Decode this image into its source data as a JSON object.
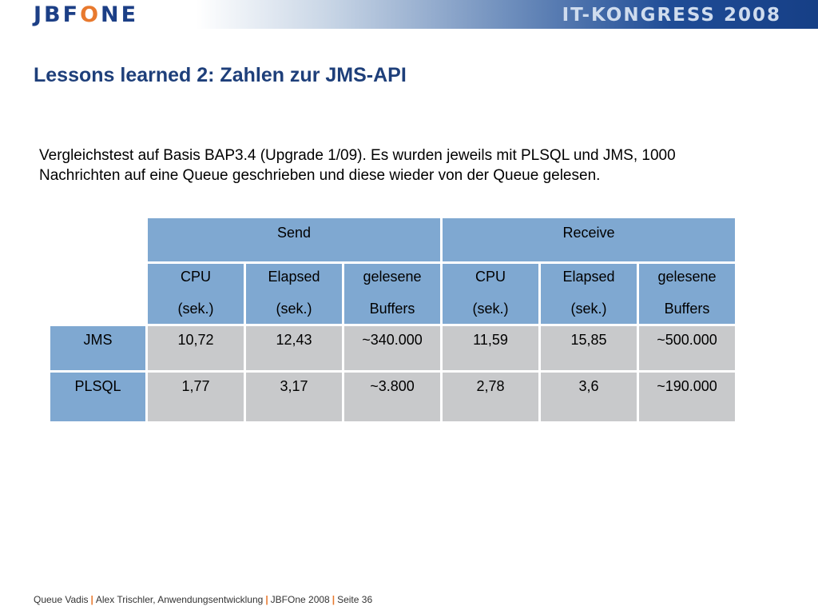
{
  "header": {
    "logo_text": "JBFONE",
    "event": "IT-KONGRESS 2008"
  },
  "slide": {
    "title": "Lessons learned 2: Zahlen zur JMS-API",
    "intro_line1": "Vergleichstest auf Basis BAP3.4 (Upgrade 1/09). Es wurden jeweils mit PLSQL und JMS, 1000",
    "intro_line2": "Nachrichten auf eine Queue geschrieben und diese wieder von der Queue gelesen."
  },
  "table": {
    "groups": [
      "Send",
      "Receive"
    ],
    "columns": [
      {
        "l1": "CPU",
        "l2": "(sek.)"
      },
      {
        "l1": "Elapsed",
        "l2": "(sek.)"
      },
      {
        "l1": "gelesene",
        "l2": "Buffers"
      },
      {
        "l1": "CPU",
        "l2": "(sek.)"
      },
      {
        "l1": "Elapsed",
        "l2": "(sek.)"
      },
      {
        "l1": "gelesene",
        "l2": "Buffers"
      }
    ],
    "rows": [
      {
        "label": "JMS",
        "values": [
          "10,72",
          "12,43",
          "~340.000",
          "11,59",
          "15,85",
          "~500.000"
        ]
      },
      {
        "label": "PLSQL",
        "values": [
          "1,77",
          "3,17",
          "~3.800",
          "2,78",
          "3,6",
          "~190.000"
        ]
      }
    ]
  },
  "footer": {
    "part1": "Queue Vadis",
    "part2": "Alex Trischler, Anwendungsentwicklung",
    "part3": "JBFOne 2008",
    "part4": "Seite 36",
    "separator": "|"
  },
  "colors": {
    "header_blue": "#1c3f86",
    "title_blue": "#1e3f7a",
    "accent_orange": "#e8792e",
    "table_header": "#7fa8d1",
    "table_cell": "#c8c9cb"
  }
}
